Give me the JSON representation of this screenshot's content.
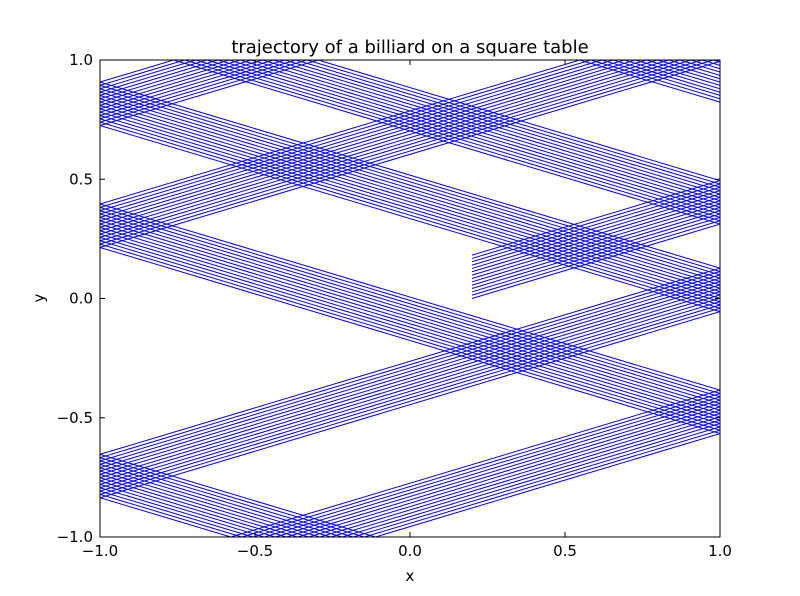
{
  "chart_data": {
    "type": "line",
    "title": "trajectory of a billiard on a square table",
    "xlabel": "x",
    "ylabel": "y",
    "xlim": [
      -1.0,
      1.0
    ],
    "ylim": [
      -1.0,
      1.0
    ],
    "xticks": [
      -1.0,
      -0.5,
      0.0,
      0.5,
      1.0
    ],
    "yticks": [
      -1.0,
      -0.5,
      0.0,
      0.5,
      1.0
    ],
    "xtick_labels": [
      "−1.0",
      "−0.5",
      "0.0",
      "0.5",
      "1.0"
    ],
    "ytick_labels": [
      "−1.0",
      "−0.5",
      "0.0",
      "0.5",
      "1.0"
    ],
    "grid": false,
    "line_color": "#0000ff",
    "trajectory": {
      "start": [
        0.2,
        0.0
      ],
      "direction": [
        1.0,
        0.3902
      ],
      "offset_step": 0.014,
      "repeats": 14
    }
  }
}
